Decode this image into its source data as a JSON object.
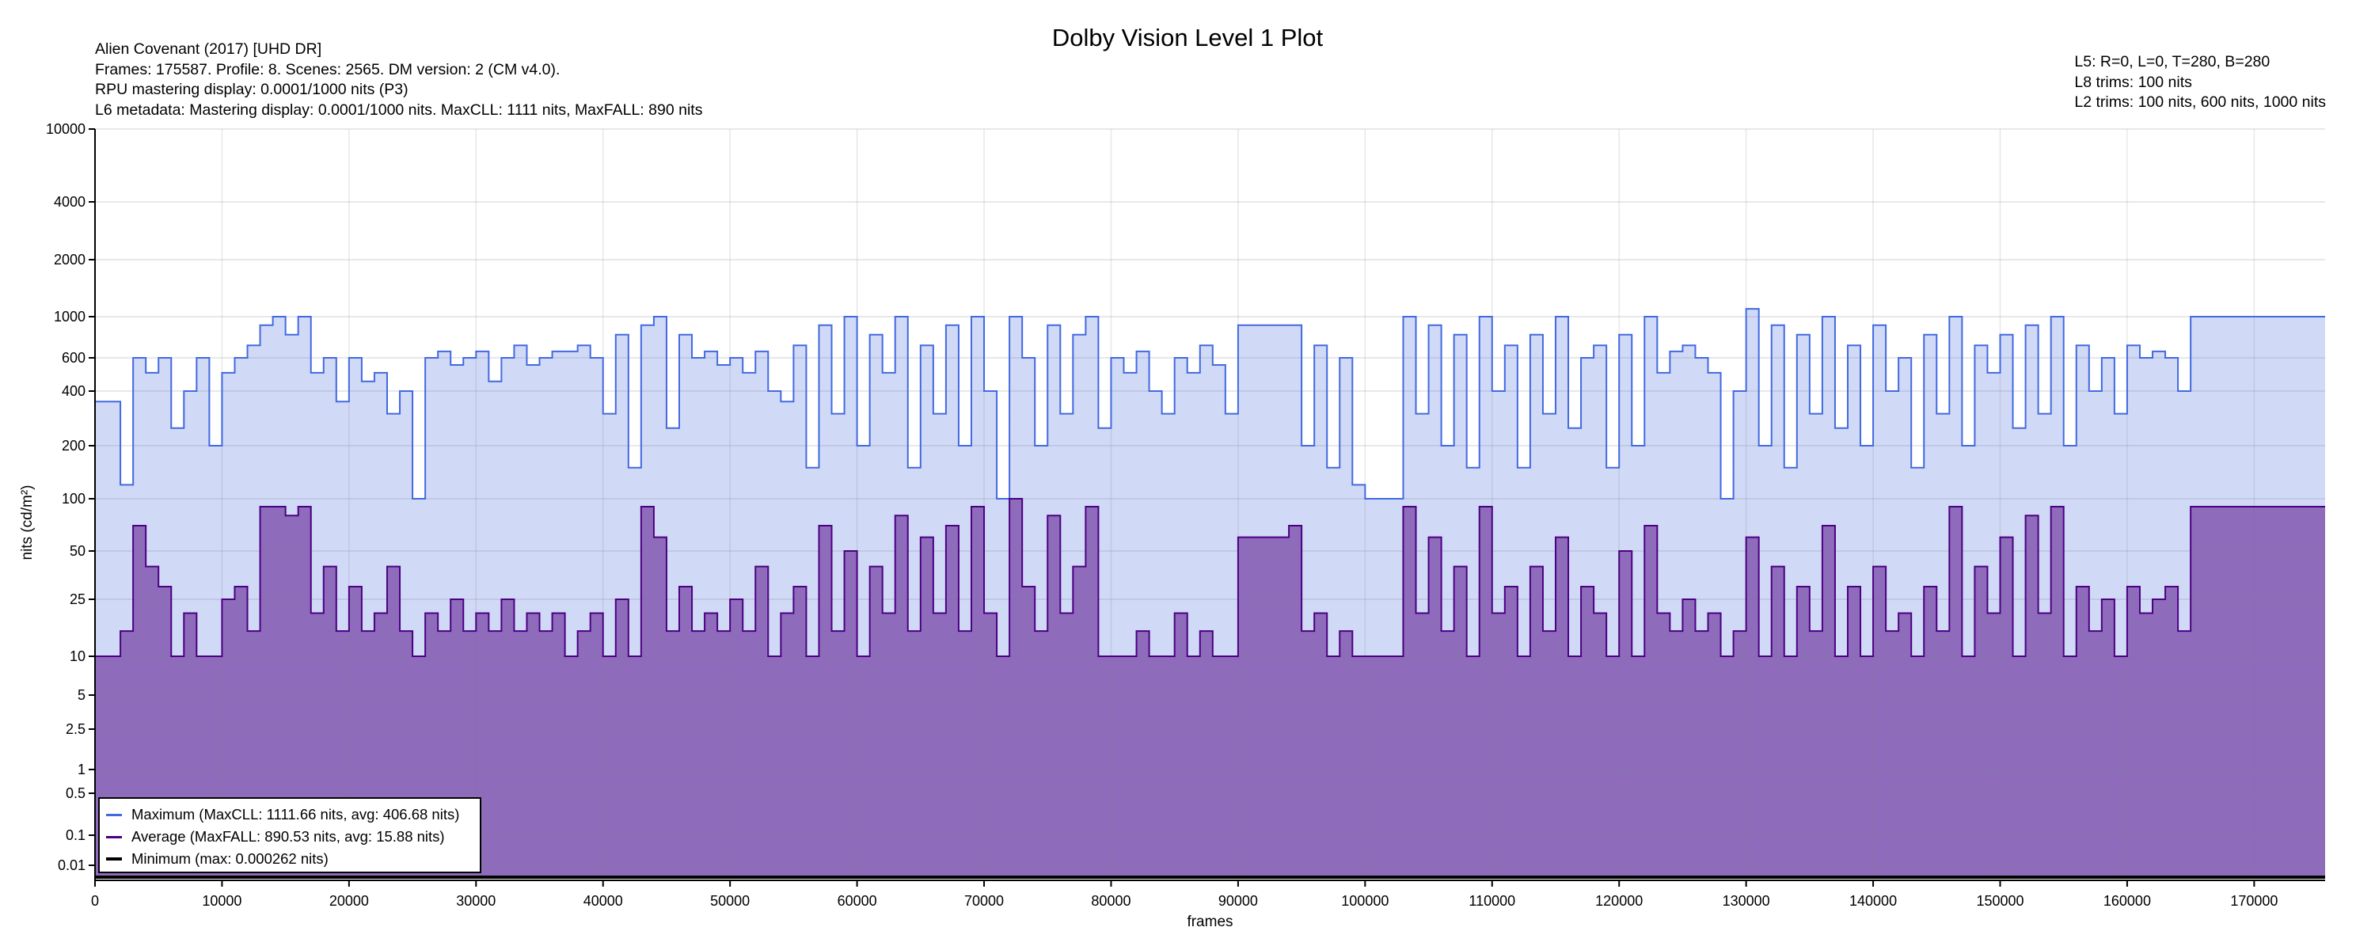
{
  "header": {
    "title": "Dolby Vision Level 1 Plot",
    "left_lines": [
      "Alien Covenant (2017) [UHD DR]",
      "Frames: 175587. Profile: 8. Scenes: 2565. DM version: 2 (CM v4.0).",
      "RPU mastering display: 0.0001/1000 nits  (P3)",
      "L6 metadata: Mastering display: 0.0001/1000 nits. MaxCLL: 1111 nits, MaxFALL: 890 nits"
    ],
    "right_lines": [
      "L5: R=0, L=0, T=280, B=280",
      "L8 trims: 100 nits",
      "L2 trims: 100 nits, 600 nits, 1000 nits"
    ]
  },
  "colors": {
    "max_line": "#4169e1",
    "max_fill": "#d0d9f5",
    "avg_line": "#4b0082",
    "avg_fill": "#8f6cbb",
    "min_line": "#000000",
    "grid": "#e0e0e0"
  },
  "chart_data": {
    "type": "area",
    "title": "Dolby Vision Level 1 Plot",
    "xlabel": "frames",
    "ylabel": "nits (cd/m²)",
    "xlim": [
      0,
      175587
    ],
    "ylim": [
      0.0001,
      10000
    ],
    "yscale": "pq-like (non-linear)",
    "x_ticks": [
      "0",
      "10000",
      "20000",
      "30000",
      "40000",
      "50000",
      "60000",
      "70000",
      "80000",
      "90000",
      "100000",
      "110000",
      "120000",
      "130000",
      "140000",
      "150000",
      "160000",
      "170000"
    ],
    "y_ticks": [
      "10000",
      "4000",
      "2000",
      "1000",
      "600",
      "400",
      "200",
      "100",
      "50",
      "25",
      "10",
      "5",
      "2.5",
      "1",
      "0.5",
      "0.1",
      "0.01"
    ],
    "y_tick_values": [
      10000,
      4000,
      2000,
      1000,
      600,
      400,
      200,
      100,
      50,
      25,
      10,
      5,
      2.5,
      1,
      0.5,
      0.1,
      0.01
    ],
    "grid": true,
    "legend_position": "bottom-left",
    "x_step_frames": 1000,
    "series": [
      {
        "name": "Maximum",
        "legend": "Maximum (MaxCLL: 1111.66 nits, avg: 406.68 nits)",
        "values": [
          350,
          350,
          120,
          600,
          500,
          600,
          250,
          400,
          600,
          200,
          500,
          600,
          700,
          900,
          1000,
          800,
          1000,
          500,
          600,
          350,
          600,
          450,
          500,
          300,
          400,
          100,
          600,
          650,
          550,
          600,
          650,
          450,
          600,
          700,
          550,
          600,
          650,
          650,
          700,
          600,
          300,
          800,
          150,
          900,
          1000,
          250,
          800,
          600,
          650,
          550,
          600,
          500,
          650,
          400,
          350,
          700,
          150,
          900,
          300,
          1000,
          200,
          800,
          500,
          1000,
          150,
          700,
          300,
          900,
          200,
          1000,
          400,
          100,
          1000,
          600,
          200,
          900,
          300,
          800,
          1000,
          250,
          600,
          500,
          650,
          400,
          300,
          600,
          500,
          700,
          550,
          300,
          900,
          900,
          900,
          900,
          900,
          200,
          700,
          150,
          600,
          120,
          100,
          100,
          100,
          1000,
          300,
          900,
          200,
          800,
          150,
          1000,
          400,
          700,
          150,
          800,
          300,
          1000,
          250,
          600,
          700,
          150,
          800,
          200,
          1000,
          500,
          650,
          700,
          600,
          500,
          100,
          400,
          1100,
          200,
          900,
          150,
          800,
          300,
          1000,
          250,
          700,
          200,
          900,
          400,
          600,
          150,
          800,
          300,
          1000,
          200,
          700,
          500,
          800,
          250,
          900,
          300,
          1000,
          200,
          700,
          400,
          600,
          300,
          700,
          600,
          650,
          600,
          400,
          1000,
          1000,
          1000,
          1000,
          1000,
          1000,
          1000,
          1000,
          1000,
          1000,
          1000
        ]
      },
      {
        "name": "Average",
        "legend": "Average (MaxFALL: 890.53 nits, avg: 15.88 nits)",
        "values": [
          10,
          10,
          15,
          70,
          40,
          30,
          10,
          20,
          10,
          10,
          25,
          30,
          15,
          90,
          90,
          80,
          90,
          20,
          40,
          15,
          30,
          15,
          20,
          40,
          15,
          10,
          20,
          15,
          25,
          15,
          20,
          15,
          25,
          15,
          20,
          15,
          20,
          10,
          15,
          20,
          10,
          25,
          10,
          90,
          60,
          15,
          30,
          15,
          20,
          15,
          25,
          15,
          40,
          10,
          20,
          30,
          10,
          70,
          15,
          50,
          10,
          40,
          20,
          80,
          15,
          60,
          20,
          70,
          15,
          90,
          20,
          10,
          100,
          30,
          15,
          80,
          20,
          40,
          90,
          10,
          10,
          10,
          15,
          10,
          10,
          20,
          10,
          15,
          10,
          10,
          60,
          60,
          60,
          60,
          70,
          15,
          20,
          10,
          15,
          10,
          10,
          10,
          10,
          90,
          20,
          60,
          15,
          40,
          10,
          90,
          20,
          30,
          10,
          40,
          15,
          60,
          10,
          30,
          20,
          10,
          50,
          10,
          70,
          20,
          15,
          25,
          15,
          20,
          10,
          15,
          60,
          10,
          40,
          10,
          30,
          15,
          70,
          10,
          30,
          10,
          40,
          15,
          20,
          10,
          30,
          15,
          90,
          10,
          40,
          20,
          60,
          10,
          80,
          20,
          90,
          10,
          30,
          15,
          25,
          10,
          30,
          20,
          25,
          30,
          15,
          90,
          90,
          90,
          90,
          90,
          90,
          90,
          90,
          90,
          90,
          90
        ]
      },
      {
        "name": "Minimum",
        "legend": "Minimum (max: 0.000262 nits)",
        "constant": 0.0001
      }
    ]
  }
}
